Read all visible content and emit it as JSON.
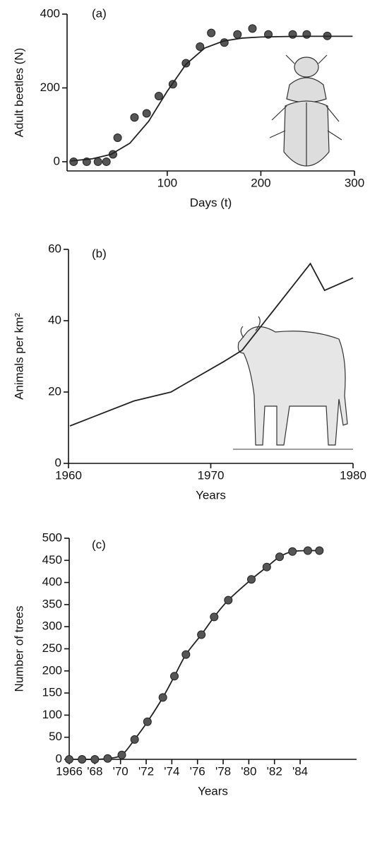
{
  "chart_data": [
    {
      "type": "scatter",
      "annotation": "(a)",
      "x_label": "Days (t)",
      "y_label": "Adult beetles (N)",
      "xlim": [
        -7,
        300
      ],
      "ylim": [
        -25,
        400
      ],
      "xticks": [
        100,
        200,
        300
      ],
      "yticks": [
        0,
        200,
        400
      ],
      "series": [
        {
          "color": "#222222",
          "style": "points",
          "x": [
            0,
            14,
            26,
            35,
            42,
            47,
            65,
            78,
            91,
            106,
            120,
            135,
            147,
            161,
            175,
            191,
            208,
            234,
            249,
            271
          ],
          "values": [
            0,
            0,
            0,
            0,
            20,
            65,
            120,
            131,
            178,
            210,
            267,
            312,
            349,
            323,
            345,
            361,
            345,
            345,
            345,
            341
          ]
        },
        {
          "color": "#222222",
          "style": "line",
          "x": [
            -3,
            20,
            40,
            60,
            80,
            100,
            120,
            140,
            160,
            180,
            200,
            240,
            298
          ],
          "values": [
            2,
            8,
            20,
            50,
            109,
            191,
            264,
            308,
            327,
            335,
            338,
            340,
            340
          ]
        }
      ]
    },
    {
      "type": "line",
      "annotation": "(b)",
      "x_label": "Years",
      "y_label": "Animals per km²",
      "xlim": [
        1960,
        1980
      ],
      "ylim": [
        0,
        60
      ],
      "xticks": [
        1960,
        1970,
        1980
      ],
      "yticks": [
        0,
        20,
        40,
        60
      ],
      "series": [
        {
          "color": "#222222",
          "style": "line",
          "x": [
            1960.1,
            1964.6,
            1967.2,
            1970.9,
            1972.2,
            1977,
            1978,
            1980
          ],
          "values": [
            10.5,
            17.5,
            20,
            28.5,
            31.7,
            56,
            48.5,
            52
          ]
        }
      ]
    },
    {
      "type": "scatter",
      "annotation": "(c)",
      "x_label": "Years",
      "y_label": "Number of trees",
      "xlim": [
        1966,
        1988.4
      ],
      "ylim": [
        0,
        500
      ],
      "xticks": [
        1966,
        {
          "value": 1968,
          "label": "'68"
        },
        {
          "value": 1970,
          "label": "'70"
        },
        {
          "value": 1972,
          "label": "'72"
        },
        {
          "value": 1974,
          "label": "'74"
        },
        {
          "value": 1976,
          "label": "'76"
        },
        {
          "value": 1978,
          "label": "'78"
        },
        {
          "value": 1980,
          "label": "'80"
        },
        {
          "value": 1982,
          "label": "'82"
        },
        {
          "value": 1984,
          "label": "'84"
        }
      ],
      "yticks": [
        0,
        50,
        100,
        150,
        200,
        250,
        300,
        350,
        400,
        450,
        500
      ],
      "series": [
        {
          "color": "#222222",
          "style": "line-points",
          "x": [
            1966,
            1967,
            1968,
            1969,
            1970.1,
            1971.1,
            1972.1,
            1973.3,
            1974.2,
            1975.1,
            1976.3,
            1977.3,
            1978.4,
            1980.2,
            1981.4,
            1982.4,
            1983.4,
            1984.6,
            1985.5
          ],
          "values": [
            0,
            0,
            0,
            2,
            10,
            45,
            85,
            140,
            188,
            237,
            282,
            322,
            360,
            407,
            435,
            458,
            470,
            472,
            472
          ]
        }
      ]
    }
  ]
}
